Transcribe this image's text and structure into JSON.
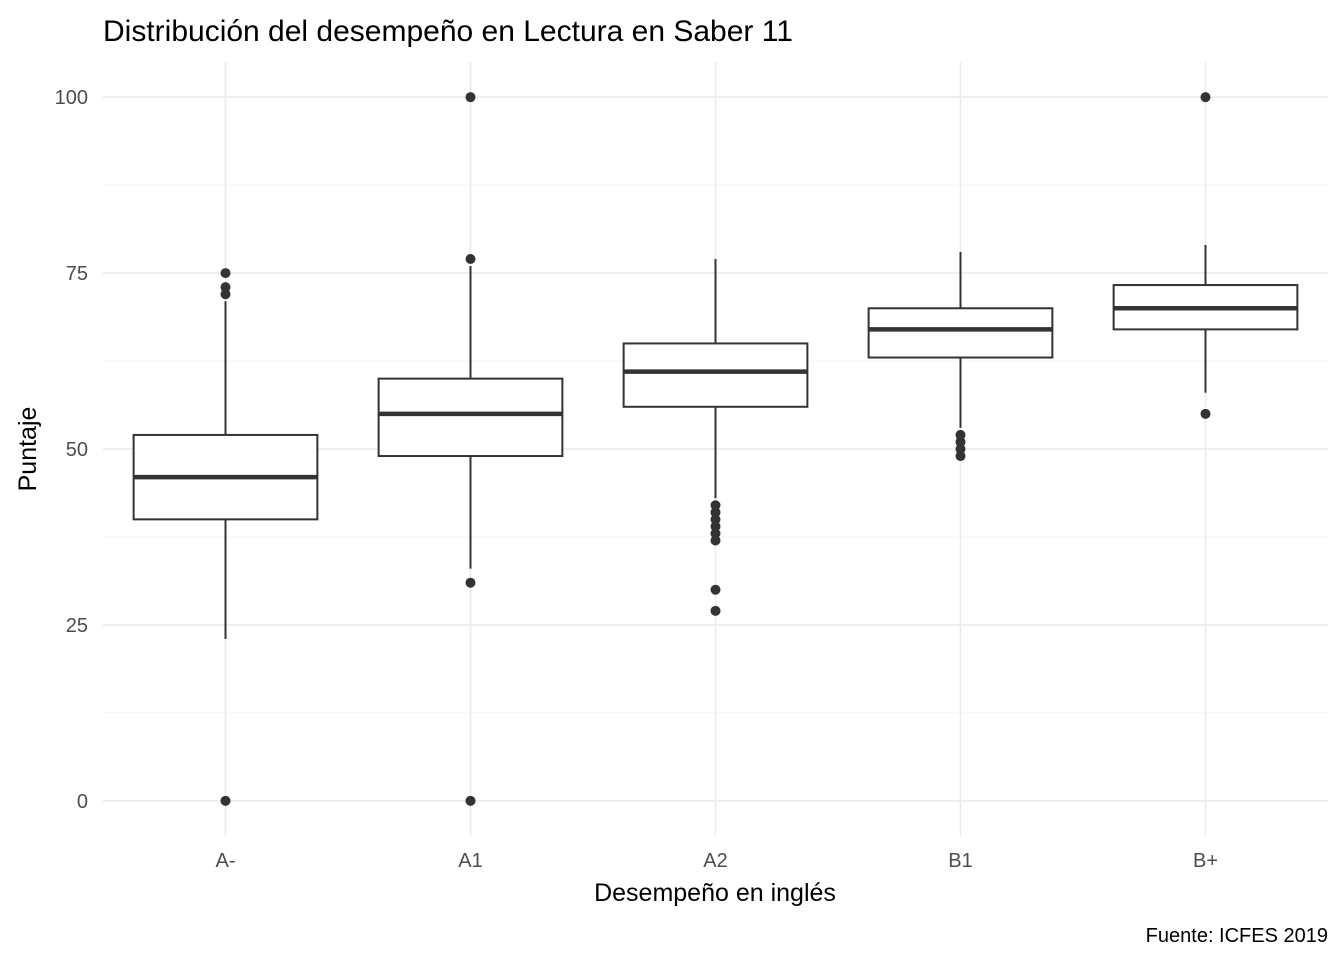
{
  "chart_data": {
    "type": "boxplot",
    "title": "Distribución del desempeño en Lectura en Saber 11",
    "xlabel": "Desempeño en inglés",
    "ylabel": "Puntaje",
    "caption": "Fuente: ICFES 2019",
    "ylim": [
      -5,
      105
    ],
    "y_ticks": [
      0,
      25,
      50,
      75,
      100
    ],
    "y_minor_ticks": [
      12.5,
      37.5,
      62.5,
      87.5
    ],
    "grid": true,
    "legend": "none",
    "categories": [
      "A-",
      "A1",
      "A2",
      "B1",
      "B+"
    ],
    "boxes": [
      {
        "category": "A-",
        "whisker_low": 23,
        "q1": 40,
        "median": 46,
        "q3": 52,
        "whisker_high": 71,
        "outliers": [
          0,
          72,
          73,
          75
        ]
      },
      {
        "category": "A1",
        "whisker_low": 33,
        "q1": 49,
        "median": 55,
        "q3": 60,
        "whisker_high": 76,
        "outliers": [
          0,
          31,
          77,
          100
        ]
      },
      {
        "category": "A2",
        "whisker_low": 43,
        "q1": 56,
        "median": 61,
        "q3": 65,
        "whisker_high": 77,
        "outliers": [
          27,
          30,
          37,
          38,
          39,
          40,
          41,
          42
        ]
      },
      {
        "category": "B1",
        "whisker_low": 53,
        "q1": 63,
        "median": 67,
        "q3": 70,
        "whisker_high": 78,
        "outliers": [
          49,
          50,
          51,
          52
        ]
      },
      {
        "category": "B+",
        "whisker_low": 58,
        "q1": 67,
        "median": 70,
        "q3": 73.3,
        "whisker_high": 79,
        "outliers": [
          55,
          100
        ]
      }
    ],
    "colors": {
      "box_line": "#333333",
      "outlier": "#333333",
      "grid_major": "#ebebeb",
      "grid_minor": "#f5f5f5",
      "axis_text": "#4d4d4d",
      "title_text": "#000000"
    }
  }
}
